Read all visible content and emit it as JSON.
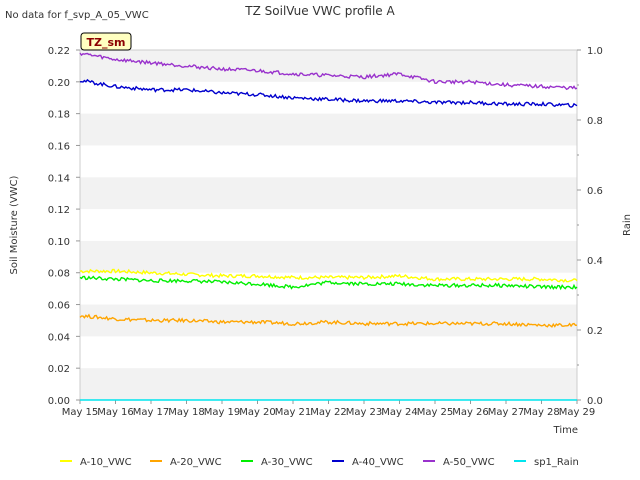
{
  "nodata_note": "No data for f_svp_A_05_VWC",
  "chart_data": {
    "type": "line",
    "title": "TZ SoilVue VWC profile A",
    "xlabel": "Time",
    "ylabel": "Soil Moisture (VWC)",
    "y2label": "Rain",
    "site_badge": "TZ_sm",
    "x_ticks": [
      "May 15",
      "May 16",
      "May 17",
      "May 18",
      "May 19",
      "May 20",
      "May 21",
      "May 22",
      "May 23",
      "May 24",
      "May 25",
      "May 26",
      "May 27",
      "May 28",
      "May 29"
    ],
    "xlim": [
      "2024-05-15",
      "2024-05-29"
    ],
    "ylim": [
      0.0,
      0.22
    ],
    "y_ticks": [
      "0.00",
      "0.02",
      "0.04",
      "0.06",
      "0.08",
      "0.10",
      "0.12",
      "0.14",
      "0.16",
      "0.18",
      "0.20",
      "0.22"
    ],
    "y2lim": [
      0.0,
      1.0
    ],
    "y2_ticks": [
      "0.0",
      "0.2",
      "0.4",
      "0.6",
      "0.8",
      "1.0"
    ],
    "grid": "horizontal bands",
    "legend_position": "bottom",
    "series": [
      {
        "name": "A-10_VWC",
        "color": "#ffff00",
        "axis": "left",
        "x": [
          "2024-05-15",
          "2024-05-16",
          "2024-05-17",
          "2024-05-18",
          "2024-05-19",
          "2024-05-20",
          "2024-05-21",
          "2024-05-22",
          "2024-05-23",
          "2024-05-24",
          "2024-05-25",
          "2024-05-26",
          "2024-05-27",
          "2024-05-28",
          "2024-05-29"
        ],
        "values": [
          0.081,
          0.081,
          0.08,
          0.079,
          0.078,
          0.078,
          0.077,
          0.077,
          0.077,
          0.078,
          0.076,
          0.076,
          0.076,
          0.076,
          0.075
        ]
      },
      {
        "name": "A-20_VWC",
        "color": "#ffa500",
        "axis": "left",
        "x": [
          "2024-05-15",
          "2024-05-16",
          "2024-05-17",
          "2024-05-18",
          "2024-05-19",
          "2024-05-20",
          "2024-05-21",
          "2024-05-22",
          "2024-05-23",
          "2024-05-24",
          "2024-05-25",
          "2024-05-26",
          "2024-05-27",
          "2024-05-28",
          "2024-05-29"
        ],
        "values": [
          0.053,
          0.051,
          0.05,
          0.05,
          0.049,
          0.049,
          0.048,
          0.049,
          0.048,
          0.048,
          0.048,
          0.048,
          0.048,
          0.047,
          0.047
        ]
      },
      {
        "name": "A-30_VWC",
        "color": "#00ee00",
        "axis": "left",
        "x": [
          "2024-05-15",
          "2024-05-16",
          "2024-05-17",
          "2024-05-18",
          "2024-05-19",
          "2024-05-20",
          "2024-05-21",
          "2024-05-22",
          "2024-05-23",
          "2024-05-24",
          "2024-05-25",
          "2024-05-26",
          "2024-05-27",
          "2024-05-28",
          "2024-05-29"
        ],
        "values": [
          0.077,
          0.076,
          0.075,
          0.075,
          0.074,
          0.073,
          0.071,
          0.074,
          0.073,
          0.073,
          0.072,
          0.072,
          0.072,
          0.071,
          0.071
        ]
      },
      {
        "name": "A-40_VWC",
        "color": "#0000cd",
        "axis": "left",
        "x": [
          "2024-05-15",
          "2024-05-16",
          "2024-05-17",
          "2024-05-18",
          "2024-05-19",
          "2024-05-20",
          "2024-05-21",
          "2024-05-22",
          "2024-05-23",
          "2024-05-24",
          "2024-05-25",
          "2024-05-26",
          "2024-05-27",
          "2024-05-28",
          "2024-05-29"
        ],
        "values": [
          0.201,
          0.197,
          0.195,
          0.195,
          0.193,
          0.192,
          0.19,
          0.189,
          0.188,
          0.188,
          0.187,
          0.187,
          0.186,
          0.186,
          0.185
        ]
      },
      {
        "name": "A-50_VWC",
        "color": "#9932cc",
        "axis": "left",
        "x": [
          "2024-05-15",
          "2024-05-16",
          "2024-05-17",
          "2024-05-18",
          "2024-05-19",
          "2024-05-20",
          "2024-05-21",
          "2024-05-22",
          "2024-05-23",
          "2024-05-24",
          "2024-05-25",
          "2024-05-26",
          "2024-05-27",
          "2024-05-28",
          "2024-05-29"
        ],
        "values": [
          0.218,
          0.214,
          0.212,
          0.21,
          0.208,
          0.207,
          0.205,
          0.204,
          0.203,
          0.205,
          0.2,
          0.2,
          0.198,
          0.197,
          0.196
        ]
      },
      {
        "name": "sp1_Rain",
        "color": "#00e5ee",
        "axis": "right",
        "x": [
          "2024-05-15",
          "2024-05-29"
        ],
        "values": [
          0.0,
          0.0
        ]
      }
    ]
  }
}
